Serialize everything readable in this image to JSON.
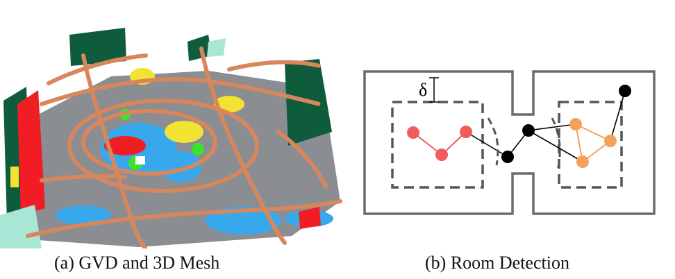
{
  "figure": {
    "caption_a": "(a) GVD and 3D Mesh",
    "caption_b": "(b) Room Detection",
    "delta_label": "δ"
  },
  "colors": {
    "floor": "#8a8d92",
    "gvd": "#d8875c",
    "wall_green": "#0e5c3c",
    "red": "#f01d25",
    "blue": "#38a8ec",
    "yellow": "#f2e232",
    "lime": "#39e52b",
    "mint": "#a8e6d6",
    "room_left": "#f25b5b",
    "room_right": "#f4a15a",
    "junction": "#000000",
    "outline": "#6b6b6b",
    "dashed": "#555555"
  }
}
